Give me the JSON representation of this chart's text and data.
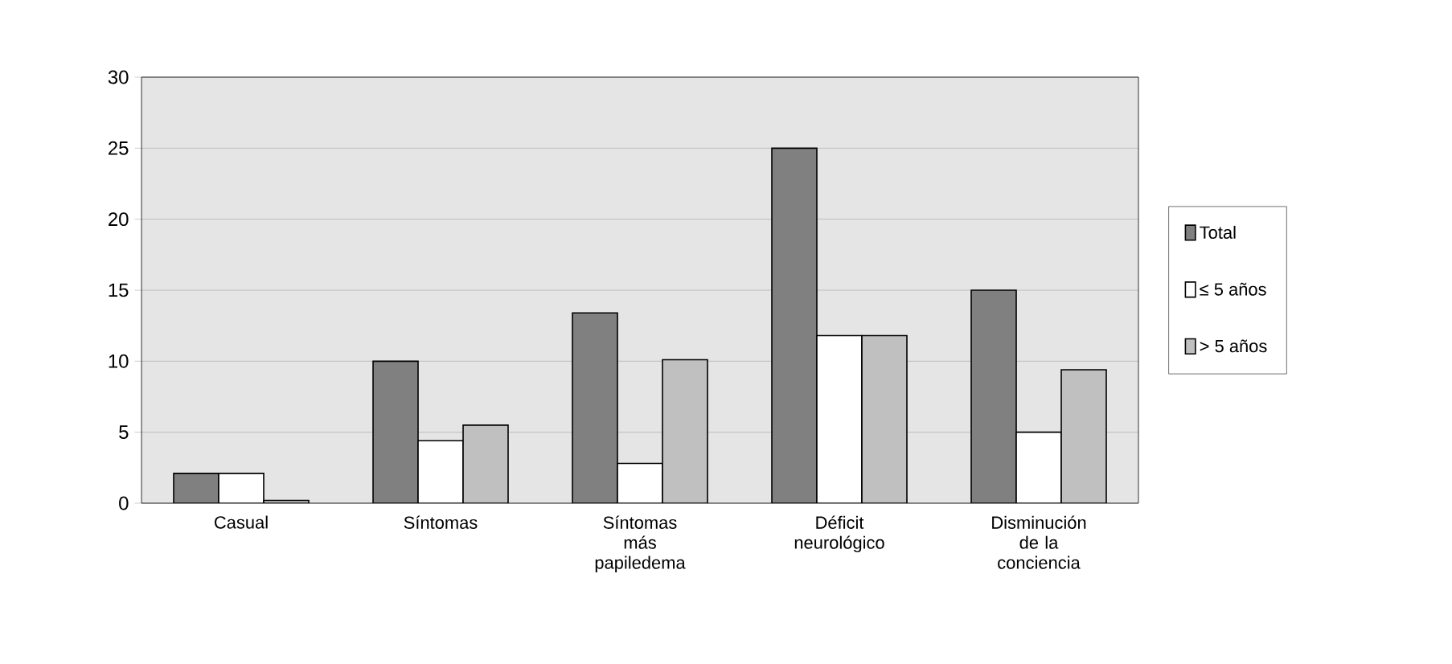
{
  "chart_data": {
    "type": "bar",
    "categories": [
      "Casual",
      "Síntomas",
      "Síntomas más papiledema",
      "Déficit neurológico",
      "Disminución de la conciencia"
    ],
    "series": [
      {
        "name": "Total",
        "color": "#808080",
        "values": [
          2.1,
          10,
          13.4,
          25,
          15
        ]
      },
      {
        "name": "≤ 5 años",
        "color": "#ffffff",
        "values": [
          2.1,
          4.4,
          2.8,
          11.8,
          5
        ]
      },
      {
        "name": "> 5 años",
        "color": "#c0c0c0",
        "values": [
          0.2,
          5.5,
          10.1,
          11.8,
          9.4
        ]
      }
    ],
    "ylim": [
      0,
      30
    ],
    "yticks": [
      0,
      5,
      10,
      15,
      20,
      25,
      30
    ],
    "grid": "y",
    "legend": "right"
  }
}
